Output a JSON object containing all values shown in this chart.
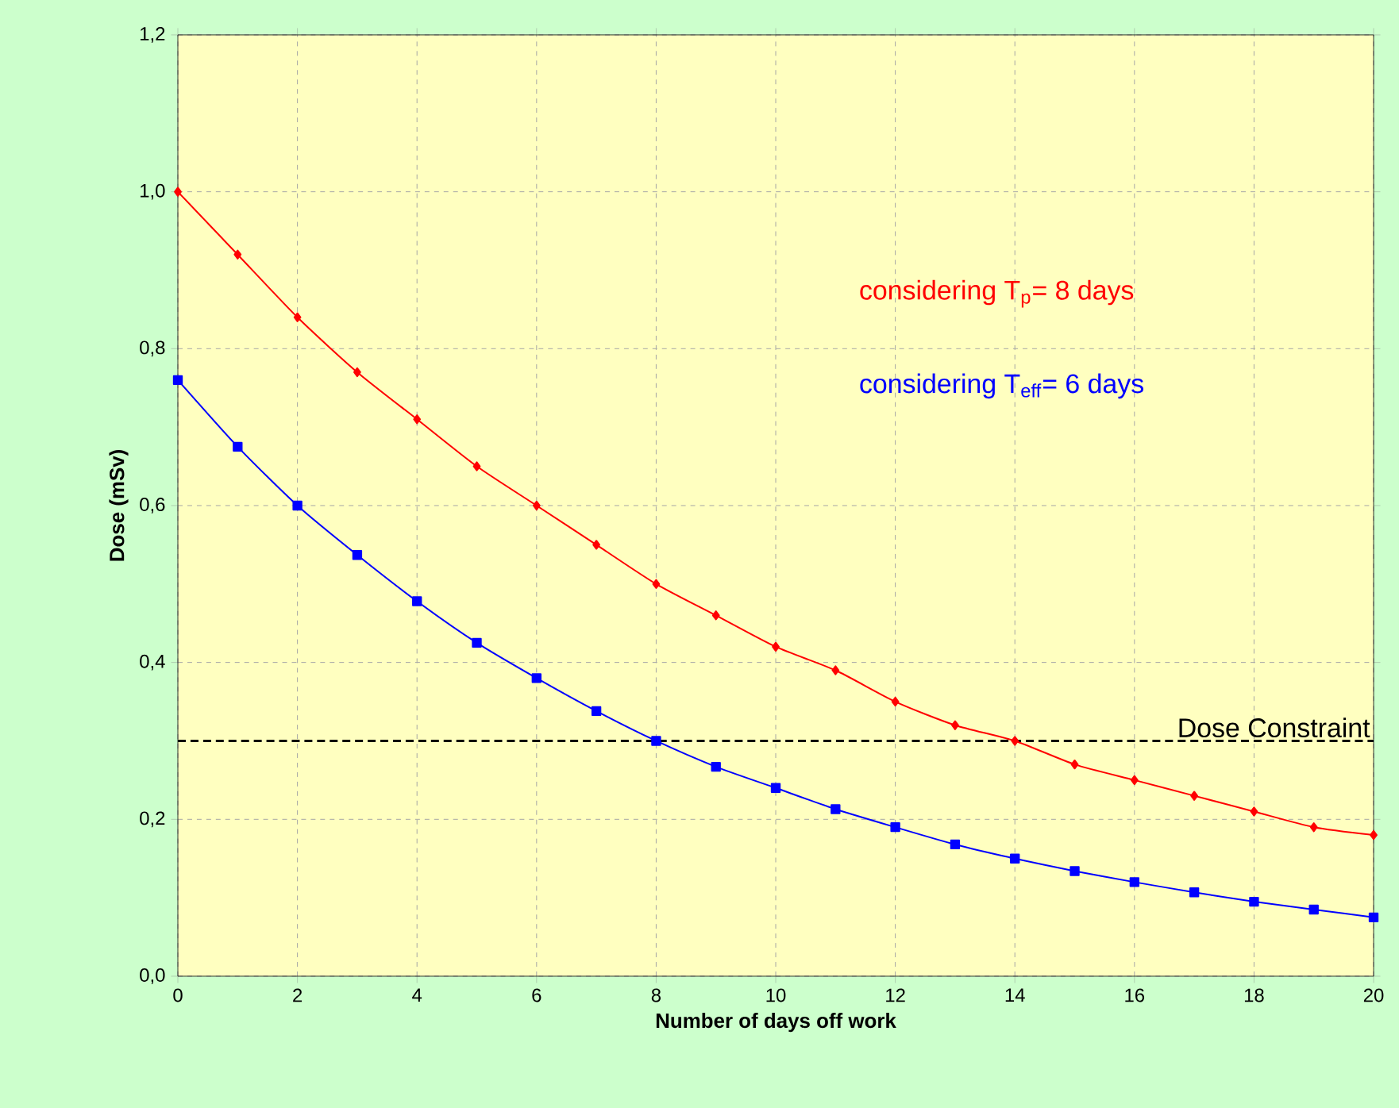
{
  "chart_data": {
    "type": "line",
    "xlabel": "Number of days off work",
    "ylabel": "Dose (mSv)",
    "x": [
      0,
      1,
      2,
      3,
      4,
      5,
      6,
      7,
      8,
      9,
      10,
      11,
      12,
      13,
      14,
      15,
      16,
      17,
      18,
      19,
      20
    ],
    "series": [
      {
        "name": "considering T$_{p}$= 8 days",
        "color": "#ff0000",
        "marker": "diamond",
        "values": [
          1.0,
          0.92,
          0.84,
          0.77,
          0.71,
          0.65,
          0.6,
          0.55,
          0.5,
          0.46,
          0.42,
          0.39,
          0.35,
          0.32,
          0.3,
          0.27,
          0.25,
          0.23,
          0.21,
          0.19,
          0.18
        ]
      },
      {
        "name": "considering T$_{eff}$= 6 days",
        "color": "#0000ff",
        "marker": "square",
        "values": [
          0.76,
          0.675,
          0.6,
          0.537,
          0.478,
          0.425,
          0.38,
          0.338,
          0.3,
          0.267,
          0.24,
          0.213,
          0.19,
          0.168,
          0.15,
          0.134,
          0.12,
          0.107,
          0.095,
          0.085,
          0.075
        ]
      }
    ],
    "xlim": [
      0,
      20
    ],
    "xticks": [
      0,
      2,
      4,
      6,
      8,
      10,
      12,
      14,
      16,
      18,
      20
    ],
    "ylim": [
      0,
      1.2
    ],
    "yticks": [
      {
        "value": 0,
        "label": "0,0"
      },
      {
        "value": 0.2,
        "label": "0,2"
      },
      {
        "value": 0.4,
        "label": "0,4"
      },
      {
        "value": 0.6,
        "label": "0,6"
      },
      {
        "value": 0.8,
        "label": "0,8"
      },
      {
        "value": 1.0,
        "label": "1,0"
      },
      {
        "value": 1.2,
        "label": "1,2"
      }
    ],
    "ref_lines": [
      {
        "axis": "y",
        "value": 0.3,
        "label": "Dose Constraint",
        "color": "#000000",
        "line_style": "dashed"
      }
    ],
    "grid": true,
    "line_style": "solid"
  }
}
